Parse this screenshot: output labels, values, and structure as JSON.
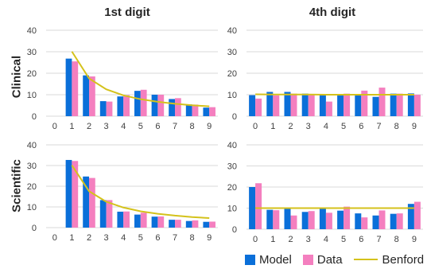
{
  "figure": {
    "col_titles": [
      "1st digit",
      "4th digit"
    ],
    "row_titles": [
      "Clinical",
      "Scientific"
    ]
  },
  "legend": {
    "model": "Model",
    "data": "Data",
    "benford": "Benford"
  },
  "colors": {
    "model": "#0a6fd9",
    "data": "#f47fbf",
    "benford": "#d4c21b",
    "grid": "#d9d9d9",
    "text": "#404040"
  },
  "chart_data": [
    {
      "type": "bar",
      "panel": "clinical-1st-digit",
      "categories": [
        "0",
        "1",
        "2",
        "3",
        "4",
        "5",
        "6",
        "7",
        "8",
        "9"
      ],
      "ylim": [
        0,
        40
      ],
      "yticks": [
        0,
        10,
        20,
        30,
        40
      ],
      "grid": true,
      "series": [
        {
          "name": "Model",
          "values": [
            null,
            26.8,
            19.0,
            7.0,
            9.2,
            11.8,
            10.0,
            8.0,
            5.5,
            4.0
          ]
        },
        {
          "name": "Data",
          "values": [
            null,
            25.5,
            18.5,
            6.8,
            9.8,
            12.3,
            10.0,
            8.4,
            5.4,
            4.2
          ]
        },
        {
          "name": "Benford",
          "line": true,
          "values": [
            null,
            30.1,
            17.6,
            12.5,
            9.7,
            7.9,
            6.7,
            5.8,
            5.1,
            4.6
          ]
        }
      ]
    },
    {
      "type": "bar",
      "panel": "clinical-4th-digit",
      "categories": [
        "0",
        "1",
        "2",
        "3",
        "4",
        "5",
        "6",
        "7",
        "8",
        "9"
      ],
      "ylim": [
        0,
        40
      ],
      "yticks": [
        0,
        10,
        20,
        30,
        40
      ],
      "grid": true,
      "series": [
        {
          "name": "Model",
          "values": [
            9.8,
            11.3,
            11.3,
            10.5,
            9.8,
            9.7,
            9.8,
            9.0,
            10.5,
            10.6
          ]
        },
        {
          "name": "Data",
          "values": [
            8.2,
            9.7,
            10.5,
            10.2,
            6.8,
            10.5,
            11.9,
            13.3,
            10.5,
            10.0
          ]
        },
        {
          "name": "Benford",
          "line": true,
          "values": [
            10.2,
            10.1,
            10.1,
            10.1,
            10.0,
            10.0,
            10.0,
            10.0,
            10.0,
            10.0
          ]
        }
      ]
    },
    {
      "type": "bar",
      "panel": "scientific-1st-digit",
      "categories": [
        "0",
        "1",
        "2",
        "3",
        "4",
        "5",
        "6",
        "7",
        "8",
        "9"
      ],
      "ylim": [
        0,
        40
      ],
      "yticks": [
        0,
        10,
        20,
        30,
        40
      ],
      "grid": true,
      "series": [
        {
          "name": "Model",
          "values": [
            null,
            32.7,
            24.7,
            13.3,
            7.7,
            6.3,
            5.3,
            3.8,
            3.2,
            2.8
          ]
        },
        {
          "name": "Data",
          "values": [
            null,
            32.2,
            24.0,
            13.3,
            7.8,
            7.2,
            5.4,
            3.8,
            3.5,
            2.9
          ]
        },
        {
          "name": "Benford",
          "line": true,
          "values": [
            null,
            30.1,
            17.6,
            12.5,
            9.7,
            7.9,
            6.7,
            5.8,
            5.1,
            4.6
          ]
        }
      ]
    },
    {
      "type": "bar",
      "panel": "scientific-4th-digit",
      "categories": [
        "0",
        "1",
        "2",
        "3",
        "4",
        "5",
        "6",
        "7",
        "8",
        "9"
      ],
      "ylim": [
        0,
        40
      ],
      "yticks": [
        0,
        10,
        20,
        30,
        40
      ],
      "grid": true,
      "series": [
        {
          "name": "Model",
          "values": [
            20.0,
            9.2,
            9.8,
            8.2,
            9.8,
            8.8,
            7.5,
            6.5,
            7.3,
            12.0
          ]
        },
        {
          "name": "Data",
          "values": [
            21.8,
            9.0,
            6.5,
            8.6,
            7.8,
            10.7,
            5.6,
            8.9,
            7.5,
            13.0
          ]
        },
        {
          "name": "Benford",
          "line": true,
          "values": [
            10.0,
            10.0,
            10.0,
            10.0,
            10.0,
            10.0,
            10.0,
            10.0,
            10.0,
            10.0
          ]
        }
      ]
    }
  ]
}
